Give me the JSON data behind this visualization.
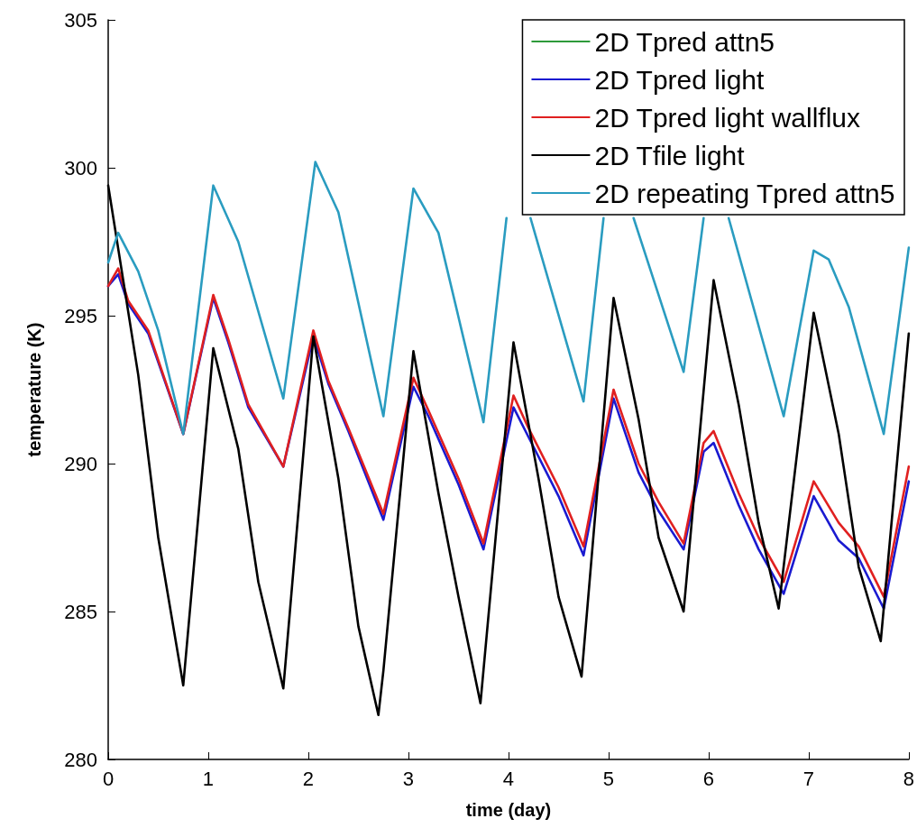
{
  "chart_data": {
    "type": "line",
    "xlabel": "time (day)",
    "ylabel": "temperature (K)",
    "xlim": [
      0,
      8
    ],
    "xticks": [
      0,
      1,
      2,
      3,
      4,
      5,
      6,
      7,
      8
    ],
    "ylim": [
      280,
      305
    ],
    "yticks": [
      280,
      285,
      290,
      295,
      300,
      305
    ],
    "grid": false,
    "legend": "top right",
    "marker": "none",
    "line_style": "solid",
    "series": [
      {
        "name": "2D Tpred attn5",
        "color": "#2e9a3a"
      },
      {
        "name": "2D Tpred light",
        "color": "#1a1ad0",
        "x": [
          0,
          0.1,
          0.2,
          0.4,
          0.75,
          1.05,
          1.2,
          1.4,
          1.75,
          2.05,
          2.2,
          2.4,
          2.75,
          3.05,
          3.2,
          3.5,
          3.75,
          4.05,
          4.2,
          4.5,
          4.75,
          5.05,
          5.3,
          5.5,
          5.75,
          5.95,
          6.05,
          6.3,
          6.5,
          6.75,
          7.05,
          7.3,
          7.5,
          7.75,
          8
        ],
        "values": [
          296,
          296.4,
          295.4,
          294.4,
          291,
          295.6,
          294.1,
          291.9,
          289.9,
          294.3,
          292.7,
          291.1,
          288.1,
          292.6,
          291.6,
          289.3,
          287.1,
          291.9,
          290.9,
          288.9,
          286.9,
          292.2,
          289.7,
          288.4,
          287.1,
          290.4,
          290.7,
          288.6,
          287.1,
          285.6,
          288.9,
          287.4,
          286.8,
          285.1,
          289.4
        ]
      },
      {
        "name": "2D Tpred light wallflux",
        "color": "#e02020",
        "x": [
          0,
          0.1,
          0.2,
          0.4,
          0.75,
          1.05,
          1.2,
          1.4,
          1.75,
          2.05,
          2.2,
          2.4,
          2.75,
          3.05,
          3.2,
          3.5,
          3.75,
          4.05,
          4.2,
          4.5,
          4.75,
          5.05,
          5.3,
          5.5,
          5.75,
          5.95,
          6.05,
          6.3,
          6.5,
          6.75,
          7.05,
          7.3,
          7.5,
          7.75,
          8
        ],
        "values": [
          296,
          296.6,
          295.5,
          294.5,
          291,
          295.7,
          294.2,
          292,
          289.9,
          294.5,
          292.8,
          291.2,
          288.3,
          292.9,
          291.8,
          289.5,
          287.3,
          292.3,
          291.2,
          289.2,
          287.2,
          292.5,
          290,
          288.7,
          287.3,
          290.7,
          291.1,
          289,
          287.5,
          286,
          289.4,
          288,
          287.2,
          285.5,
          289.9
        ]
      },
      {
        "name": "2D Tfile light",
        "color": "#000000",
        "x": [
          0,
          0.3,
          0.5,
          0.75,
          1.05,
          1.3,
          1.5,
          1.75,
          2.05,
          2.3,
          2.5,
          2.7,
          2.75,
          3.05,
          3.3,
          3.5,
          3.72,
          4.05,
          4.3,
          4.5,
          4.73,
          5.05,
          5.3,
          5.5,
          5.75,
          6.05,
          6.3,
          6.5,
          6.7,
          7.05,
          7.3,
          7.5,
          7.72,
          8
        ],
        "values": [
          299.4,
          293,
          287.5,
          282.5,
          293.9,
          290.5,
          286,
          282.4,
          294.3,
          289.5,
          284.5,
          281.5,
          283,
          293.8,
          289,
          285.5,
          281.9,
          294.1,
          289.5,
          285.5,
          282.8,
          295.6,
          291.5,
          287.5,
          285,
          296.2,
          292,
          288,
          285.1,
          295.1,
          291,
          286.5,
          284,
          294.4
        ]
      },
      {
        "name": "2D repeating Tpred attn5",
        "color": "#2a9cc0",
        "x": [
          0,
          0.1,
          0.3,
          0.5,
          0.75,
          1.05,
          1.3,
          1.75,
          2.07,
          2.3,
          2.75,
          3.05,
          3.3,
          3.75,
          3.98,
          4.1,
          4.22,
          4.75,
          4.95,
          5.1,
          5.25,
          5.75,
          5.95,
          6.05,
          6.2,
          6.75,
          7.05,
          7.2,
          7.4,
          7.75,
          8
        ],
        "values": [
          296.8,
          297.8,
          296.5,
          294.5,
          291,
          299.4,
          297.5,
          292.2,
          300.2,
          298.5,
          291.6,
          299.3,
          297.8,
          291.4,
          298.3,
          null,
          298.3,
          292.1,
          298.3,
          null,
          298.3,
          293.1,
          298.3,
          null,
          298.3,
          291.6,
          297.2,
          296.9,
          295.3,
          291,
          297.3
        ]
      }
    ]
  }
}
